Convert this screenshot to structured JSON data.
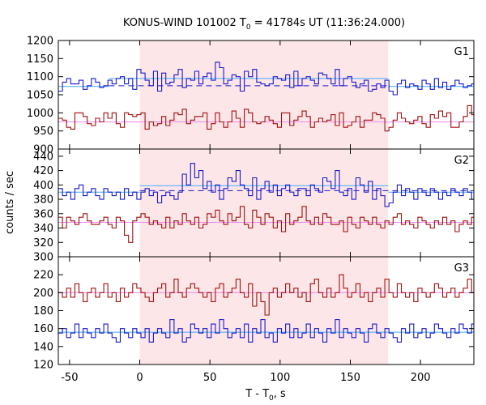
{
  "chart_data": {
    "type": "line",
    "title_prefix": "KONUS-WIND 101002 T",
    "title_sub": "0",
    "title_suffix": " = 41784s UT (11:36:24.000)",
    "ylabel": "counts / sec",
    "xlabel_prefix": "T - T",
    "xlabel_sub": "0",
    "xlabel_suffix": ", s",
    "xlim": [
      -58,
      238
    ],
    "xticks": [
      -50,
      0,
      50,
      100,
      150,
      200
    ],
    "highlight_interval": [
      0,
      177
    ],
    "colors": {
      "red_series": "#a01010",
      "blue_series": "#1a1acc",
      "red_fit": "#ee88ee",
      "blue_fit": "#44aaff",
      "highlight": "#fde6e8",
      "blue_dashed": "#1a1acc"
    },
    "panels": [
      {
        "label": "G1",
        "ylim": [
          900,
          1200
        ],
        "yticks": [
          900,
          950,
          1000,
          1050,
          1100,
          1150,
          1200
        ],
        "series": [
          {
            "color": "red",
            "x_start": -58,
            "step": 2.944,
            "values": [
              985,
              980,
              960,
              955,
              1000,
              1000,
              990,
              970,
              965,
              985,
              975,
              1000,
              985,
              1000,
              970,
              960,
              1000,
              995,
              990,
              995,
              1000,
              955,
              975,
              965,
              970,
              990,
              965,
              980,
              1000,
              995,
              1010,
              970,
              980,
              990,
              990,
              1000,
              955,
              970,
              1000,
              975,
              960,
              975,
              1005,
              985,
              960,
              1010,
              1000,
              975,
              970,
              975,
              990,
              980,
              970,
              960,
              1000,
              1000,
              965,
              980,
              990,
              1005,
              990,
              960,
              975,
              985,
              975,
              980,
              995,
              965,
              1000,
              960,
              965,
              975,
              990,
              960,
              980,
              980,
              1000,
              995,
              985,
              950,
              960,
              980,
              1000,
              985,
              975,
              970,
              980,
              990,
              970,
              960,
              995,
              985,
              1005,
              990,
              1000,
              960,
              960,
              975,
              990,
              1020,
              995,
              1000
            ]
          },
          {
            "color": "blue",
            "x_start": -58,
            "step": 2.944,
            "values": [
              1060,
              1085,
              1095,
              1080,
              1080,
              1090,
              1065,
              1075,
              1095,
              1085,
              1070,
              1075,
              1090,
              1080,
              1095,
              1100,
              1080,
              1095,
              1065,
              1120,
              1110,
              1090,
              1075,
              1115,
              1060,
              1110,
              1080,
              1085,
              1105,
              1120,
              1070,
              1095,
              1090,
              1115,
              1080,
              1100,
              1110,
              1090,
              1140,
              1125,
              1080,
              1090,
              1105,
              1100,
              1060,
              1115,
              1100,
              1120,
              1085,
              1080,
              1075,
              1080,
              1100,
              1095,
              1090,
              1105,
              1070,
              1115,
              1075,
              1095,
              1100,
              1090,
              1080,
              1110,
              1105,
              1095,
              1080,
              1120,
              1075,
              1095,
              1100,
              1085,
              1070,
              1080,
              1090,
              1060,
              1065,
              1080,
              1070,
              1090,
              1060,
              1050,
              1080,
              1090,
              1070,
              1080,
              1075,
              1065,
              1090,
              1080,
              1065,
              1095,
              1070,
              1085,
              1065,
              1075,
              1090,
              1080,
              1070,
              1075,
              1080
            ]
          }
        ],
        "fits": [
          {
            "color": "red_fit",
            "value": 975,
            "x": [
              -58,
              238
            ],
            "style": "solid"
          },
          {
            "color": "blue_fit",
            "value": 1095,
            "x": [
              -22,
              177
            ],
            "style": "solid"
          },
          {
            "color": "blue_fit",
            "value": 1073,
            "x": [
              -58,
              -22
            ],
            "style": "solid"
          },
          {
            "color": "blue_fit",
            "value": 1073,
            "x": [
              177,
              238
            ],
            "style": "solid"
          },
          {
            "color": "blue_dashed",
            "value": 1075,
            "x": [
              -22,
              177
            ],
            "style": "dashed"
          }
        ]
      },
      {
        "label": "G2",
        "ylim": [
          300,
          450
        ],
        "yticks": [
          300,
          320,
          340,
          360,
          380,
          400,
          420,
          440
        ],
        "series": [
          {
            "color": "red",
            "x_start": -58,
            "step": 2.944,
            "values": [
              355,
              340,
              355,
              350,
              345,
              355,
              360,
              350,
              345,
              345,
              350,
              355,
              345,
              340,
              355,
              350,
              330,
              320,
              350,
              355,
              360,
              355,
              345,
              350,
              345,
              340,
              355,
              340,
              350,
              345,
              360,
              350,
              345,
              355,
              340,
              345,
              360,
              355,
              365,
              350,
              345,
              360,
              350,
              355,
              370,
              345,
              340,
              365,
              355,
              345,
              360,
              355,
              340,
              350,
              335,
              360,
              345,
              350,
              355,
              370,
              350,
              345,
              355,
              345,
              360,
              355,
              345,
              345,
              350,
              335,
              355,
              345,
              340,
              355,
              350,
              345,
              355,
              345,
              340,
              350,
              345,
              355,
              360,
              345,
              350,
              345,
              340,
              355,
              350,
              345,
              340,
              350,
              345,
              355,
              345,
              350,
              335,
              345,
              350,
              345,
              355
            ]
          },
          {
            "color": "blue",
            "x_start": -58,
            "step": 2.944,
            "values": [
              395,
              385,
              390,
              380,
              395,
              400,
              385,
              390,
              395,
              385,
              380,
              395,
              390,
              385,
              390,
              380,
              395,
              385,
              390,
              380,
              390,
              395,
              385,
              390,
              375,
              385,
              390,
              385,
              380,
              390,
              415,
              400,
              430,
              410,
              420,
              395,
              405,
              390,
              400,
              380,
              395,
              410,
              405,
              420,
              400,
              395,
              385,
              410,
              380,
              395,
              405,
              390,
              400,
              385,
              395,
              400,
              390,
              385,
              395,
              395,
              385,
              400,
              395,
              390,
              410,
              405,
              395,
              420,
              390,
              385,
              395,
              380,
              410,
              400,
              390,
              405,
              380,
              395,
              385,
              370,
              375,
              390,
              400,
              385,
              395,
              390,
              380,
              395,
              390,
              385,
              395,
              390,
              380,
              390,
              385,
              395,
              390,
              385,
              395,
              390,
              380
            ]
          }
        ],
        "fits": [
          {
            "color": "red_fit",
            "value": 348,
            "x": [
              -58,
              238
            ],
            "style": "solid"
          },
          {
            "color": "blue_fit",
            "value": 399,
            "x": [
              0,
              177
            ],
            "style": "solid"
          },
          {
            "color": "blue_fit",
            "value": 390,
            "x": [
              -58,
              0
            ],
            "style": "solid"
          },
          {
            "color": "blue_fit",
            "value": 390,
            "x": [
              177,
              238
            ],
            "style": "solid"
          },
          {
            "color": "blue_dashed",
            "value": 392,
            "x": [
              0,
              238
            ],
            "style": "dashed"
          }
        ]
      },
      {
        "label": "G3",
        "ylim": [
          120,
          240
        ],
        "yticks": [
          120,
          140,
          160,
          180,
          200,
          220
        ],
        "series": [
          {
            "color": "red",
            "x_start": -58,
            "step": 2.944,
            "values": [
              200,
              195,
              205,
              195,
              210,
              200,
              190,
              200,
              205,
              195,
              200,
              210,
              195,
              200,
              190,
              205,
              195,
              200,
              210,
              205,
              200,
              195,
              190,
              200,
              205,
              210,
              195,
              200,
              215,
              200,
              195,
              205,
              210,
              205,
              200,
              195,
              200,
              190,
              205,
              210,
              195,
              200,
              205,
              215,
              200,
              195,
              210,
              185,
              200,
              190,
              175,
              200,
              205,
              195,
              200,
              210,
              200,
              205,
              195,
              200,
              190,
              210,
              215,
              200,
              195,
              205,
              195,
              200,
              220,
              205,
              195,
              200,
              210,
              195,
              200,
              190,
              200,
              205,
              195,
              215,
              200,
              195,
              210,
              200,
              195,
              200,
              190,
              205,
              200,
              195,
              200,
              210,
              205,
              195,
              200,
              205,
              195,
              200,
              205,
              215,
              200
            ]
          },
          {
            "color": "blue",
            "x_start": -58,
            "step": 2.944,
            "values": [
              155,
              160,
              150,
              155,
              165,
              150,
              160,
              155,
              150,
              160,
              155,
              165,
              155,
              150,
              145,
              160,
              155,
              150,
              160,
              155,
              150,
              160,
              145,
              155,
              160,
              155,
              150,
              170,
              155,
              160,
              145,
              150,
              165,
              160,
              155,
              160,
              150,
              165,
              155,
              170,
              160,
              150,
              155,
              160,
              150,
              165,
              145,
              160,
              155,
              170,
              150,
              155,
              145,
              160,
              155,
              165,
              150,
              160,
              150,
              155,
              165,
              150,
              160,
              155,
              145,
              160,
              155,
              170,
              150,
              160,
              155,
              150,
              160,
              155,
              145,
              160,
              165,
              155,
              150,
              160,
              155,
              150,
              145,
              160,
              155,
              165,
              150,
              155,
              160,
              150,
              155,
              165,
              160,
              155,
              150,
              160,
              155,
              165,
              160,
              155,
              165
            ]
          }
        ],
        "fits": [
          {
            "color": "red_fit",
            "value": 200,
            "x": [
              -58,
              238
            ],
            "style": "solid"
          },
          {
            "color": "blue_fit",
            "value": 156,
            "x": [
              -58,
              238
            ],
            "style": "solid"
          }
        ]
      }
    ]
  }
}
